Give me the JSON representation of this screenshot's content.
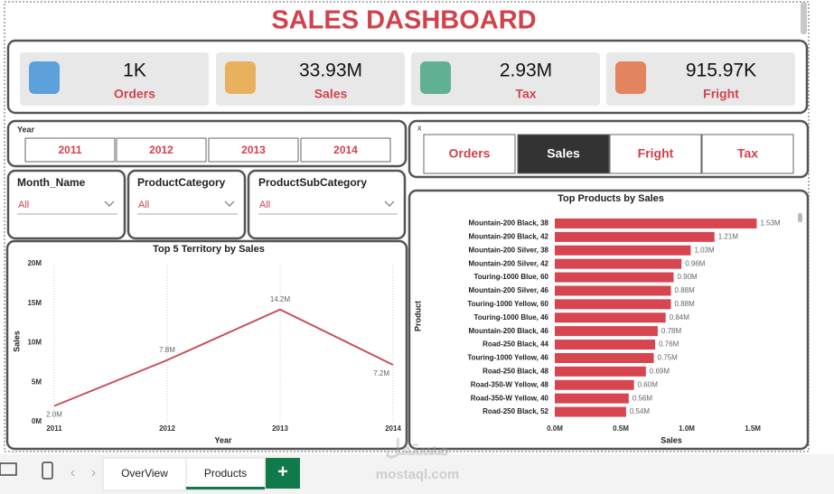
{
  "header": {
    "title": "SALES DASHBOARD"
  },
  "kpis": [
    {
      "value": "1K",
      "label": "Orders"
    },
    {
      "value": "33.93M",
      "label": "Sales"
    },
    {
      "value": "2.93M",
      "label": "Tax"
    },
    {
      "value": "915.97K",
      "label": "Fright"
    }
  ],
  "year_slicer": {
    "title": "Year",
    "options": [
      "2011",
      "2012",
      "2013",
      "2014"
    ]
  },
  "measure_slicer": {
    "title": "x",
    "options": [
      "Orders",
      "Sales",
      "Fright",
      "Tax"
    ],
    "selected": 1
  },
  "dropdowns": [
    {
      "title": "Month_Name",
      "value": "All"
    },
    {
      "title": "ProductCategory",
      "value": "All"
    },
    {
      "title": "ProductSubCategory",
      "value": "All"
    }
  ],
  "tabs": {
    "pages": [
      "OverView",
      "Products"
    ],
    "active": 1,
    "add": "+"
  },
  "watermark": {
    "arabic": "مستقل",
    "latin": "mostaql.com"
  },
  "chart_data": [
    {
      "type": "line",
      "title": "Top 5 Territory by Sales",
      "x_label": "Year",
      "y_label": "Sales",
      "x": [
        2011,
        2012,
        2013,
        2014
      ],
      "values": [
        2000000,
        7800000,
        14200000,
        7200000
      ],
      "value_labels": [
        "2.0M",
        "7.8M",
        "14.2M",
        "7.2M"
      ],
      "color": "#c8505a",
      "xlim": [
        2011,
        2014
      ],
      "xticks": [
        2011,
        2012,
        2013,
        2014
      ],
      "ylim": [
        0,
        20000000
      ],
      "yticks": [
        {
          "value": 0,
          "label": "0M"
        },
        {
          "value": 5000000,
          "label": "5M"
        },
        {
          "value": 10000000,
          "label": "10M"
        },
        {
          "value": 15000000,
          "label": "15M"
        },
        {
          "value": 20000000,
          "label": "20M"
        }
      ],
      "grid": true
    },
    {
      "type": "bar",
      "orientation": "horizontal",
      "title": "Top Products by Sales",
      "x_label": "Sales",
      "y_label": "Product",
      "categories": [
        "Mountain-200 Black, 38",
        "Mountain-200 Black, 42",
        "Mountain-200 Silver, 38",
        "Mountain-200 Silver, 42",
        "Touring-1000 Blue, 60",
        "Mountain-200 Silver, 46",
        "Touring-1000 Yellow, 60",
        "Touring-1000 Blue, 46",
        "Mountain-200 Black, 46",
        "Road-250 Black, 44",
        "Touring-1000 Yellow, 46",
        "Road-250 Black, 48",
        "Road-350-W Yellow, 48",
        "Road-350-W Yellow, 40",
        "Road-250 Black, 52"
      ],
      "values": [
        1530000,
        1210000,
        1030000,
        960000,
        900000,
        880000,
        880000,
        840000,
        780000,
        760000,
        750000,
        690000,
        600000,
        560000,
        540000
      ],
      "value_labels": [
        "1.53M",
        "1.21M",
        "1.03M",
        "0.96M",
        "0.90M",
        "0.88M",
        "0.88M",
        "0.84M",
        "0.78M",
        "0.76M",
        "0.75M",
        "0.69M",
        "0.60M",
        "0.56M",
        "0.54M"
      ],
      "color": "#d64550",
      "xlim": [
        0,
        1650000
      ],
      "xticks": [
        {
          "value": 0,
          "label": "0.0M"
        },
        {
          "value": 500000,
          "label": "0.5M"
        },
        {
          "value": 1000000,
          "label": "1.0M"
        },
        {
          "value": 1500000,
          "label": "1.5M"
        }
      ]
    }
  ]
}
